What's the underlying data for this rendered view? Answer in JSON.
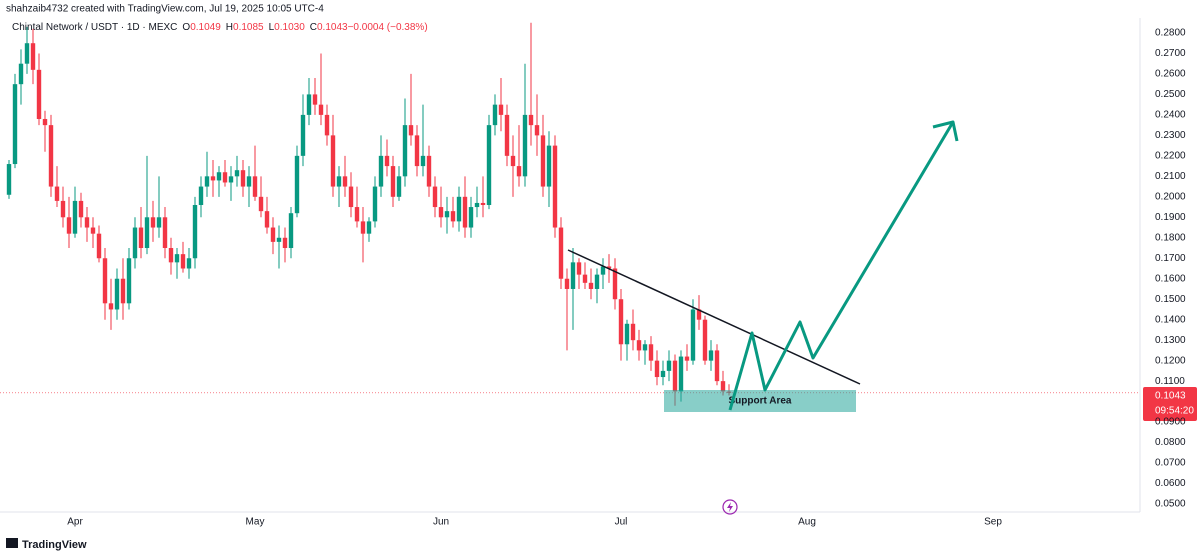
{
  "chart_data": {
    "type": "candlestick",
    "credit": "shahzaib4732 created with TradingView.com, Jul 19, 2025 10:05 UTC-4",
    "symbol": "Chintal Network / USDT · 1D · MEXC",
    "ohlc_header": [
      "O",
      "0.1049",
      "H",
      "0.1085",
      "L",
      "0.1030",
      "C",
      "0.1043",
      "−0.0004 (−0.38%)"
    ],
    "annotation": "Support Area",
    "countdown": "09:54:20",
    "brand": "TradingView",
    "up_color": "#089981",
    "down_color": "#f23645",
    "xlim": [
      -1.5,
      188.5
    ],
    "xticks": [
      {
        "value": 11,
        "label": "Apr"
      },
      {
        "value": 41,
        "label": "May"
      },
      {
        "value": 72,
        "label": "Jun"
      },
      {
        "value": 102,
        "label": "Jul"
      },
      {
        "value": 133,
        "label": "Aug"
      },
      {
        "value": 164,
        "label": "Sep"
      }
    ],
    "ylim": [
      0.0461,
      0.2961
    ],
    "yticks": [
      {
        "value": 0.05,
        "label": "0.0500"
      },
      {
        "value": 0.06,
        "label": "0.0600"
      },
      {
        "value": 0.07,
        "label": "0.0700"
      },
      {
        "value": 0.08,
        "label": "0.0800"
      },
      {
        "value": 0.09,
        "label": "0.0900"
      },
      {
        "value": 0.11,
        "label": "0.1100"
      },
      {
        "value": 0.12,
        "label": "0.1200"
      },
      {
        "value": 0.13,
        "label": "0.1300"
      },
      {
        "value": 0.14,
        "label": "0.1400"
      },
      {
        "value": 0.15,
        "label": "0.1500"
      },
      {
        "value": 0.16,
        "label": "0.1600"
      },
      {
        "value": 0.17,
        "label": "0.1700"
      },
      {
        "value": 0.18,
        "label": "0.1800"
      },
      {
        "value": 0.19,
        "label": "0.1900"
      },
      {
        "value": 0.2,
        "label": "0.2000"
      },
      {
        "value": 0.21,
        "label": "0.2100"
      },
      {
        "value": 0.22,
        "label": "0.2200"
      },
      {
        "value": 0.23,
        "label": "0.2300"
      },
      {
        "value": 0.24,
        "label": "0.2400"
      },
      {
        "value": 0.25,
        "label": "0.2500"
      },
      {
        "value": 0.26,
        "label": "0.2600"
      },
      {
        "value": 0.27,
        "label": "0.2700"
      },
      {
        "value": 0.28,
        "label": "0.2800"
      }
    ],
    "series": [
      {
        "name": "Chintal Network / USDT",
        "values": [
          [
            0.201,
            0.218,
            0.199,
            0.216
          ],
          [
            0.216,
            0.26,
            0.214,
            0.255
          ],
          [
            0.255,
            0.272,
            0.245,
            0.265
          ],
          [
            0.265,
            0.283,
            0.26,
            0.275
          ],
          [
            0.275,
            0.282,
            0.255,
            0.262
          ],
          [
            0.262,
            0.27,
            0.235,
            0.238
          ],
          [
            0.238,
            0.242,
            0.222,
            0.235
          ],
          [
            0.235,
            0.24,
            0.2,
            0.205
          ],
          [
            0.205,
            0.215,
            0.195,
            0.198
          ],
          [
            0.198,
            0.205,
            0.185,
            0.19
          ],
          [
            0.19,
            0.2,
            0.175,
            0.182
          ],
          [
            0.182,
            0.205,
            0.18,
            0.198
          ],
          [
            0.198,
            0.202,
            0.185,
            0.19
          ],
          [
            0.19,
            0.195,
            0.178,
            0.185
          ],
          [
            0.185,
            0.19,
            0.175,
            0.182
          ],
          [
            0.182,
            0.186,
            0.168,
            0.17
          ],
          [
            0.17,
            0.175,
            0.14,
            0.148
          ],
          [
            0.148,
            0.16,
            0.135,
            0.145
          ],
          [
            0.145,
            0.165,
            0.14,
            0.16
          ],
          [
            0.16,
            0.17,
            0.14,
            0.148
          ],
          [
            0.148,
            0.175,
            0.145,
            0.17
          ],
          [
            0.17,
            0.19,
            0.165,
            0.185
          ],
          [
            0.185,
            0.195,
            0.17,
            0.175
          ],
          [
            0.175,
            0.22,
            0.172,
            0.19
          ],
          [
            0.19,
            0.198,
            0.178,
            0.185
          ],
          [
            0.185,
            0.21,
            0.18,
            0.19
          ],
          [
            0.19,
            0.195,
            0.17,
            0.175
          ],
          [
            0.175,
            0.18,
            0.162,
            0.168
          ],
          [
            0.168,
            0.175,
            0.16,
            0.172
          ],
          [
            0.172,
            0.178,
            0.163,
            0.165
          ],
          [
            0.165,
            0.175,
            0.16,
            0.17
          ],
          [
            0.17,
            0.2,
            0.165,
            0.196
          ],
          [
            0.196,
            0.21,
            0.19,
            0.205
          ],
          [
            0.205,
            0.222,
            0.2,
            0.21
          ],
          [
            0.21,
            0.218,
            0.2,
            0.208
          ],
          [
            0.208,
            0.215,
            0.2,
            0.212
          ],
          [
            0.212,
            0.218,
            0.205,
            0.207
          ],
          [
            0.207,
            0.215,
            0.198,
            0.21
          ],
          [
            0.21,
            0.22,
            0.205,
            0.213
          ],
          [
            0.213,
            0.218,
            0.2,
            0.205
          ],
          [
            0.205,
            0.215,
            0.195,
            0.21
          ],
          [
            0.21,
            0.225,
            0.198,
            0.2
          ],
          [
            0.2,
            0.21,
            0.19,
            0.193
          ],
          [
            0.193,
            0.2,
            0.182,
            0.185
          ],
          [
            0.185,
            0.19,
            0.172,
            0.178
          ],
          [
            0.178,
            0.186,
            0.165,
            0.18
          ],
          [
            0.18,
            0.185,
            0.168,
            0.175
          ],
          [
            0.175,
            0.195,
            0.17,
            0.192
          ],
          [
            0.192,
            0.225,
            0.19,
            0.22
          ],
          [
            0.22,
            0.25,
            0.215,
            0.24
          ],
          [
            0.24,
            0.258,
            0.235,
            0.25
          ],
          [
            0.25,
            0.258,
            0.24,
            0.245
          ],
          [
            0.245,
            0.27,
            0.235,
            0.24
          ],
          [
            0.24,
            0.245,
            0.225,
            0.23
          ],
          [
            0.23,
            0.24,
            0.2,
            0.205
          ],
          [
            0.205,
            0.215,
            0.195,
            0.21
          ],
          [
            0.21,
            0.22,
            0.2,
            0.205
          ],
          [
            0.205,
            0.212,
            0.19,
            0.195
          ],
          [
            0.195,
            0.205,
            0.185,
            0.188
          ],
          [
            0.188,
            0.195,
            0.168,
            0.182
          ],
          [
            0.182,
            0.19,
            0.178,
            0.188
          ],
          [
            0.188,
            0.21,
            0.185,
            0.205
          ],
          [
            0.205,
            0.23,
            0.2,
            0.22
          ],
          [
            0.22,
            0.228,
            0.21,
            0.215
          ],
          [
            0.215,
            0.22,
            0.195,
            0.2
          ],
          [
            0.2,
            0.215,
            0.198,
            0.21
          ],
          [
            0.21,
            0.248,
            0.205,
            0.235
          ],
          [
            0.235,
            0.26,
            0.225,
            0.23
          ],
          [
            0.23,
            0.235,
            0.21,
            0.215
          ],
          [
            0.215,
            0.245,
            0.21,
            0.22
          ],
          [
            0.22,
            0.225,
            0.2,
            0.205
          ],
          [
            0.205,
            0.21,
            0.19,
            0.195
          ],
          [
            0.195,
            0.205,
            0.185,
            0.19
          ],
          [
            0.19,
            0.2,
            0.182,
            0.193
          ],
          [
            0.193,
            0.2,
            0.185,
            0.188
          ],
          [
            0.188,
            0.205,
            0.183,
            0.2
          ],
          [
            0.2,
            0.21,
            0.18,
            0.185
          ],
          [
            0.185,
            0.2,
            0.18,
            0.195
          ],
          [
            0.195,
            0.205,
            0.19,
            0.197
          ],
          [
            0.197,
            0.21,
            0.19,
            0.196
          ],
          [
            0.196,
            0.24,
            0.194,
            0.235
          ],
          [
            0.235,
            0.25,
            0.23,
            0.245
          ],
          [
            0.245,
            0.258,
            0.232,
            0.24
          ],
          [
            0.24,
            0.245,
            0.215,
            0.22
          ],
          [
            0.22,
            0.23,
            0.2,
            0.215
          ],
          [
            0.215,
            0.235,
            0.205,
            0.21
          ],
          [
            0.21,
            0.265,
            0.205,
            0.24
          ],
          [
            0.24,
            0.285,
            0.225,
            0.235
          ],
          [
            0.235,
            0.25,
            0.22,
            0.23
          ],
          [
            0.23,
            0.24,
            0.2,
            0.205
          ],
          [
            0.205,
            0.232,
            0.195,
            0.225
          ],
          [
            0.225,
            0.23,
            0.18,
            0.185
          ],
          [
            0.185,
            0.19,
            0.155,
            0.16
          ],
          [
            0.16,
            0.165,
            0.125,
            0.155
          ],
          [
            0.155,
            0.175,
            0.135,
            0.168
          ],
          [
            0.168,
            0.17,
            0.155,
            0.162
          ],
          [
            0.162,
            0.168,
            0.155,
            0.158
          ],
          [
            0.158,
            0.165,
            0.15,
            0.155
          ],
          [
            0.155,
            0.165,
            0.148,
            0.162
          ],
          [
            0.162,
            0.17,
            0.155,
            0.166
          ],
          [
            0.166,
            0.172,
            0.158,
            0.165
          ],
          [
            0.165,
            0.17,
            0.145,
            0.15
          ],
          [
            0.15,
            0.155,
            0.12,
            0.128
          ],
          [
            0.128,
            0.14,
            0.12,
            0.138
          ],
          [
            0.138,
            0.145,
            0.125,
            0.13
          ],
          [
            0.13,
            0.135,
            0.12,
            0.125
          ],
          [
            0.125,
            0.13,
            0.118,
            0.128
          ],
          [
            0.128,
            0.132,
            0.115,
            0.12
          ],
          [
            0.12,
            0.125,
            0.108,
            0.112
          ],
          [
            0.112,
            0.12,
            0.108,
            0.115
          ],
          [
            0.115,
            0.125,
            0.11,
            0.12
          ],
          [
            0.12,
            0.123,
            0.098,
            0.105
          ],
          [
            0.105,
            0.125,
            0.1,
            0.122
          ],
          [
            0.122,
            0.128,
            0.115,
            0.12
          ],
          [
            0.12,
            0.15,
            0.118,
            0.145
          ],
          [
            0.145,
            0.152,
            0.135,
            0.14
          ],
          [
            0.14,
            0.142,
            0.118,
            0.12
          ],
          [
            0.12,
            0.13,
            0.115,
            0.125
          ],
          [
            0.125,
            0.128,
            0.108,
            0.11
          ],
          [
            0.11,
            0.115,
            0.103,
            0.105
          ],
          [
            0.1049,
            0.1085,
            0.103,
            0.1043
          ]
        ]
      }
    ]
  }
}
